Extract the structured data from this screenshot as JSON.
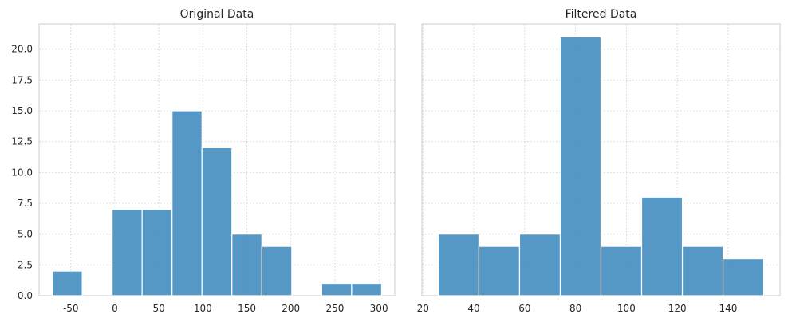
{
  "chart_data": [
    {
      "type": "bar",
      "title": "Original Data",
      "xlabel": "",
      "ylabel": "",
      "bins": [
        {
          "x0": -71,
          "x1": -37,
          "value": 2
        },
        {
          "x0": -37,
          "x1": -3,
          "value": 0
        },
        {
          "x0": -3,
          "x1": 31,
          "value": 7
        },
        {
          "x0": 31,
          "x1": 65,
          "value": 7
        },
        {
          "x0": 65,
          "x1": 99,
          "value": 15
        },
        {
          "x0": 99,
          "x1": 133,
          "value": 12
        },
        {
          "x0": 133,
          "x1": 167,
          "value": 5
        },
        {
          "x0": 167,
          "x1": 201,
          "value": 4
        },
        {
          "x0": 201,
          "x1": 235,
          "value": 0
        },
        {
          "x0": 235,
          "x1": 269,
          "value": 1
        },
        {
          "x0": 269,
          "x1": 303,
          "value": 1
        }
      ],
      "xlim": [
        -86,
        318
      ],
      "ylim": [
        0,
        22.05
      ],
      "xticks": [
        "-50",
        "0",
        "50",
        "100",
        "150",
        "200",
        "250",
        "300"
      ],
      "xtick_values": [
        -50,
        0,
        50,
        100,
        150,
        200,
        250,
        300
      ],
      "yticks": [
        "0.0",
        "2.5",
        "5.0",
        "7.5",
        "10.0",
        "12.5",
        "15.0",
        "17.5",
        "20.0"
      ],
      "ytick_values": [
        0,
        2.5,
        5,
        7.5,
        10,
        12.5,
        15,
        17.5,
        20
      ],
      "grid": true,
      "color": "#4c92c3"
    },
    {
      "type": "bar",
      "title": "Filtered Data",
      "xlabel": "",
      "ylabel": "",
      "bins": [
        {
          "x0": 26,
          "x1": 42,
          "value": 5
        },
        {
          "x0": 42,
          "x1": 58,
          "value": 4
        },
        {
          "x0": 58,
          "x1": 74,
          "value": 5
        },
        {
          "x0": 74,
          "x1": 90,
          "value": 21
        },
        {
          "x0": 90,
          "x1": 106,
          "value": 4
        },
        {
          "x0": 106,
          "x1": 122,
          "value": 8
        },
        {
          "x0": 122,
          "x1": 138,
          "value": 4
        },
        {
          "x0": 138,
          "x1": 154,
          "value": 3
        }
      ],
      "xlim": [
        19.6,
        160.4
      ],
      "ylim": [
        0,
        22.05
      ],
      "xticks": [
        "20",
        "40",
        "60",
        "80",
        "100",
        "120",
        "140"
      ],
      "xtick_values": [
        20,
        40,
        60,
        80,
        100,
        120,
        140
      ],
      "yticks": [],
      "ytick_values": [
        0,
        2.5,
        5,
        7.5,
        10,
        12.5,
        15,
        17.5,
        20
      ],
      "grid": true,
      "color": "#4c92c3"
    }
  ]
}
